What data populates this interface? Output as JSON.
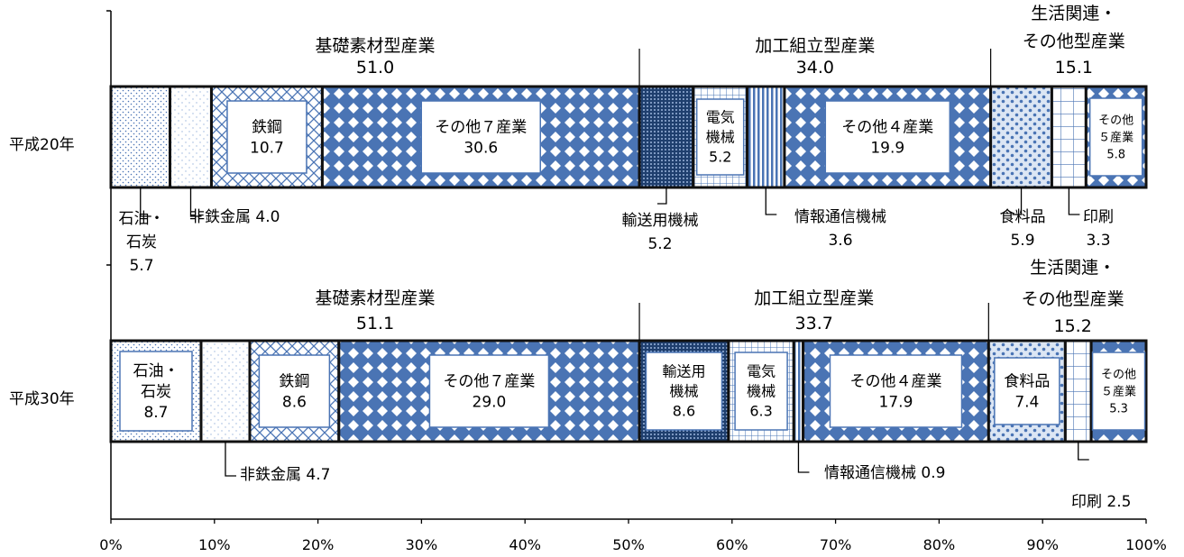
{
  "chart_data": {
    "type": "bar",
    "stacked": true,
    "orientation": "horizontal",
    "percent": true,
    "categories": [
      "平成20年",
      "平成30年"
    ],
    "x_ticks": [
      "0%",
      "10%",
      "20%",
      "30%",
      "40%",
      "50%",
      "60%",
      "70%",
      "80%",
      "90%",
      "100%"
    ],
    "xlim": [
      0,
      100
    ],
    "grid": false,
    "rows": [
      {
        "name": "平成20年",
        "groups": [
          {
            "name": "基礎素材型産業",
            "total": "51.0"
          },
          {
            "name": "加工組立型産業",
            "total": "34.0"
          },
          {
            "name": "生活関連・その他型産業",
            "line1": "生活関連・",
            "line2": "その他型産業",
            "total": "15.1"
          }
        ],
        "segments": [
          {
            "name": "石油・石炭",
            "value": 5.7,
            "label_lines": [
              "石油・",
              "石炭",
              "5.7"
            ]
          },
          {
            "name": "非鉄金属",
            "value": 4.0,
            "label_lines": [
              "非鉄金属 4.0"
            ]
          },
          {
            "name": "鉄鋼",
            "value": 10.7,
            "label_lines": [
              "鉄鋼",
              "10.7"
            ]
          },
          {
            "name": "その他７産業",
            "value": 30.6,
            "label_lines": [
              "その他７産業",
              "30.6"
            ]
          },
          {
            "name": "輸送用機械",
            "value": 5.2,
            "label_lines": [
              "輸送用機械",
              "5.2"
            ]
          },
          {
            "name": "電気機械",
            "value": 5.2,
            "label_lines": [
              "電気",
              "機械",
              "5.2"
            ]
          },
          {
            "name": "情報通信機械",
            "value": 3.6,
            "label_lines": [
              "情報通信機械",
              "3.6"
            ]
          },
          {
            "name": "その他４産業",
            "value": 19.9,
            "label_lines": [
              "その他４産業",
              "19.9"
            ]
          },
          {
            "name": "食料品",
            "value": 5.9,
            "label_lines": [
              "食料品",
              "5.9"
            ]
          },
          {
            "name": "印刷",
            "value": 3.3,
            "label_lines": [
              "印刷",
              "3.3"
            ]
          },
          {
            "name": "その他５産業",
            "value": 5.8,
            "label_lines": [
              "その他",
              "５産業",
              "5.8"
            ]
          }
        ]
      },
      {
        "name": "平成30年",
        "groups": [
          {
            "name": "基礎素材型産業",
            "total": "51.1"
          },
          {
            "name": "加工組立型産業",
            "total": "33.7"
          },
          {
            "name": "生活関連・その他型産業",
            "line1": "生活関連・",
            "line2": "その他型産業",
            "total": "15.2"
          }
        ],
        "segments": [
          {
            "name": "石油・石炭",
            "value": 8.7,
            "label_lines": [
              "石油・",
              "石炭",
              "8.7"
            ]
          },
          {
            "name": "非鉄金属",
            "value": 4.7,
            "label_lines": [
              "非鉄金属 4.7"
            ]
          },
          {
            "name": "鉄鋼",
            "value": 8.6,
            "label_lines": [
              "鉄鋼",
              "8.6"
            ]
          },
          {
            "name": "その他７産業",
            "value": 29.0,
            "label_lines": [
              "その他７産業",
              "29.0"
            ]
          },
          {
            "name": "輸送用機械",
            "value": 8.6,
            "label_lines": [
              "輸送用",
              "機械",
              "8.6"
            ]
          },
          {
            "name": "電気機械",
            "value": 6.3,
            "label_lines": [
              "電気",
              "機械",
              "6.3"
            ]
          },
          {
            "name": "情報通信機械",
            "value": 0.9,
            "label_lines": [
              "情報通信機械 0.9"
            ]
          },
          {
            "name": "その他４産業",
            "value": 17.9,
            "label_lines": [
              "その他４産業",
              "17.9"
            ]
          },
          {
            "name": "食料品",
            "value": 7.4,
            "label_lines": [
              "食料品",
              "7.4"
            ]
          },
          {
            "name": "印刷",
            "value": 2.5,
            "label_lines": [
              "印刷 2.5"
            ]
          },
          {
            "name": "その他５産業",
            "value": 5.3,
            "label_lines": [
              "その他",
              "５産業",
              "5.3"
            ]
          }
        ]
      }
    ],
    "colors": {
      "accent": "#4a74b4",
      "dark": "#1f3f6e",
      "light": "#9bb5dc",
      "border": "#111111",
      "box_border": "#4a74b4"
    }
  }
}
